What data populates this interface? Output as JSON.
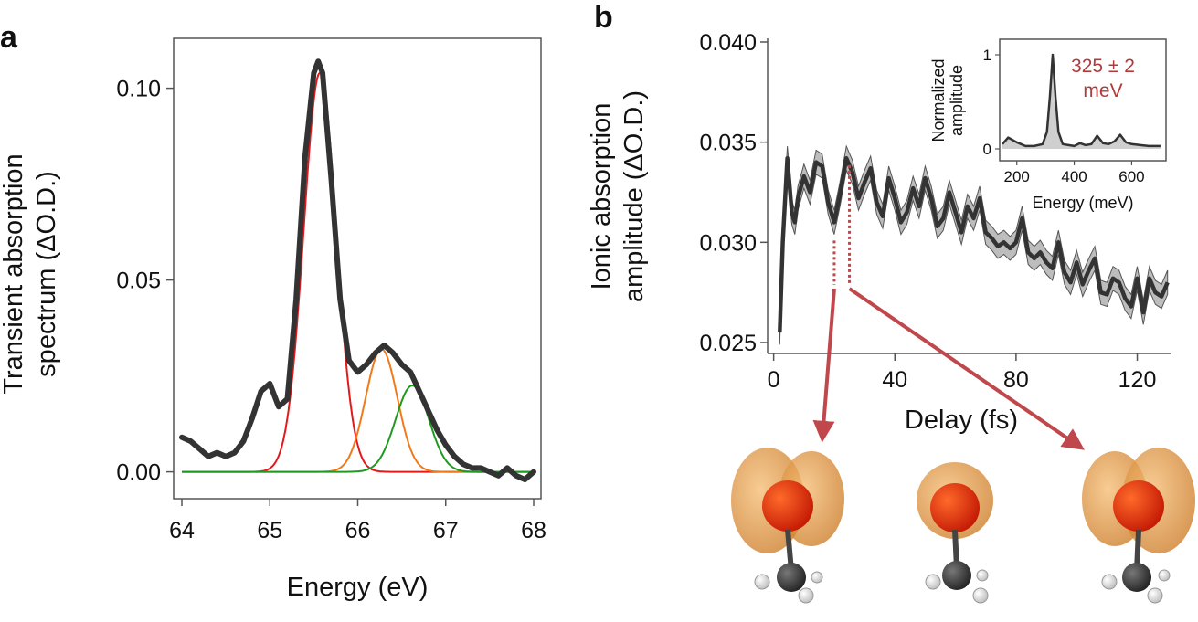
{
  "panels": {
    "a": {
      "label": "a"
    },
    "b": {
      "label": "b"
    }
  },
  "colors": {
    "measured": "#333333",
    "fit_red": "#e3191c",
    "fit_orange": "#f07a1a",
    "fit_green": "#1f9a1f",
    "band": "#bdbdbd",
    "arrow": "#c0474b",
    "annotation": "#b23a3a",
    "orbital": "#e8962e",
    "carbon": "#3a3a3a",
    "hydrogen": "#ffffff"
  },
  "chart_data": [
    {
      "id": "a",
      "type": "line",
      "title": "",
      "xlabel": "Energy (eV)",
      "ylabel_lines": [
        "Transient absorption",
        "spectrum (ΔO.D.)"
      ],
      "xlim": [
        64,
        68
      ],
      "ylim": [
        -0.007,
        0.113
      ],
      "xticks": [
        64,
        65,
        66,
        67,
        68
      ],
      "xtick_labels": [
        "64",
        "65",
        "66",
        "67",
        "68"
      ],
      "yticks": [
        0.0,
        0.05,
        0.1
      ],
      "ytick_labels": [
        "0.00",
        "0.05",
        "0.10"
      ],
      "series": [
        {
          "name": "measured",
          "x": [
            64.0,
            64.1,
            64.2,
            64.3,
            64.4,
            64.5,
            64.6,
            64.7,
            64.8,
            64.9,
            65.0,
            65.1,
            65.2,
            65.3,
            65.4,
            65.5,
            65.55,
            65.6,
            65.7,
            65.8,
            65.9,
            66.0,
            66.1,
            66.2,
            66.3,
            66.4,
            66.5,
            66.6,
            66.7,
            66.8,
            66.9,
            67.0,
            67.1,
            67.2,
            67.3,
            67.4,
            67.5,
            67.6,
            67.7,
            67.8,
            67.9,
            68.0
          ],
          "y": [
            0.009,
            0.008,
            0.006,
            0.004,
            0.005,
            0.004,
            0.005,
            0.008,
            0.014,
            0.021,
            0.023,
            0.017,
            0.019,
            0.045,
            0.082,
            0.104,
            0.107,
            0.104,
            0.076,
            0.045,
            0.029,
            0.026,
            0.028,
            0.031,
            0.033,
            0.031,
            0.028,
            0.026,
            0.021,
            0.016,
            0.011,
            0.007,
            0.004,
            0.002,
            0.001,
            0.001,
            0.0,
            -0.001,
            0.001,
            -0.001,
            -0.002,
            0.0
          ]
        },
        {
          "name": "fit-red",
          "gaussian": {
            "center": 65.57,
            "amplitude": 0.104,
            "sigma": 0.185
          }
        },
        {
          "name": "fit-orange",
          "gaussian": {
            "center": 66.27,
            "amplitude": 0.032,
            "sigma": 0.18
          }
        },
        {
          "name": "fit-green",
          "gaussian": {
            "center": 66.62,
            "amplitude": 0.0225,
            "sigma": 0.19
          }
        }
      ]
    },
    {
      "id": "b",
      "type": "line",
      "title": "",
      "xlabel": "Delay (fs)",
      "ylabel_lines": [
        "Ionic absorption",
        "amplitude (ΔO.D.)"
      ],
      "xlim": [
        -2,
        131
      ],
      "ylim": [
        0.0248,
        0.0405
      ],
      "xticks": [
        0,
        40,
        80,
        120
      ],
      "xtick_labels": [
        "0",
        "40",
        "80",
        "120"
      ],
      "yticks": [
        0.025,
        0.03,
        0.035,
        0.04
      ],
      "ytick_labels": [
        "0.025",
        "0.030",
        "0.035",
        "0.040"
      ],
      "band_halfwidth": 0.0006,
      "series": [
        {
          "name": "ionic-amplitude",
          "x": [
            2,
            3,
            4.5,
            6,
            7,
            8,
            10,
            12,
            14,
            16,
            18,
            20,
            22,
            24,
            26,
            28,
            30,
            32,
            34,
            36,
            38,
            40,
            42,
            44,
            46,
            48,
            50,
            52,
            54,
            56,
            58,
            60,
            62,
            64,
            66,
            68,
            70,
            72,
            74,
            76,
            78,
            80,
            82,
            84,
            86,
            88,
            90,
            92,
            94,
            96,
            98,
            100,
            102,
            104,
            106,
            108,
            110,
            112,
            114,
            116,
            118,
            120,
            122,
            124,
            126,
            128,
            130
          ],
          "y": [
            0.0255,
            0.03,
            0.0342,
            0.0315,
            0.031,
            0.0322,
            0.0333,
            0.0325,
            0.034,
            0.0338,
            0.032,
            0.031,
            0.0325,
            0.0342,
            0.0335,
            0.0322,
            0.033,
            0.0337,
            0.032,
            0.0313,
            0.0332,
            0.0322,
            0.031,
            0.0315,
            0.0327,
            0.0318,
            0.0332,
            0.0322,
            0.0308,
            0.0312,
            0.0325,
            0.0315,
            0.0305,
            0.0318,
            0.0312,
            0.0322,
            0.0305,
            0.0302,
            0.0298,
            0.03,
            0.0297,
            0.03,
            0.0312,
            0.0295,
            0.0292,
            0.0295,
            0.029,
            0.0287,
            0.03,
            0.0285,
            0.028,
            0.029,
            0.0279,
            0.0286,
            0.0292,
            0.0275,
            0.0274,
            0.0282,
            0.028,
            0.0272,
            0.0268,
            0.0282,
            0.0265,
            0.0282,
            0.0275,
            0.0273,
            0.028
          ]
        }
      ],
      "annotation_delays": [
        20,
        25
      ]
    },
    {
      "id": "b-inset",
      "type": "area",
      "title": "",
      "xlabel": "Energy (meV)",
      "ylabel_lines": [
        "Normalized",
        "amplitude"
      ],
      "xlim": [
        150,
        710
      ],
      "ylim": [
        0,
        1.08
      ],
      "xticks": [
        200,
        400,
        600
      ],
      "xtick_labels": [
        "200",
        "400",
        "600"
      ],
      "yticks": [
        0,
        1
      ],
      "ytick_labels": [
        "0",
        "1"
      ],
      "annotation": [
        "325 ± 2",
        "meV"
      ],
      "series": [
        {
          "name": "spectrum",
          "x": [
            150,
            170,
            200,
            230,
            260,
            290,
            305,
            315,
            325,
            335,
            345,
            360,
            380,
            400,
            420,
            440,
            460,
            480,
            500,
            520,
            540,
            560,
            580,
            600,
            630,
            660,
            700
          ],
          "y": [
            0.05,
            0.12,
            0.07,
            0.03,
            0.03,
            0.05,
            0.18,
            0.55,
            1.0,
            0.55,
            0.18,
            0.05,
            0.04,
            0.03,
            0.06,
            0.04,
            0.05,
            0.14,
            0.06,
            0.05,
            0.08,
            0.15,
            0.07,
            0.05,
            0.04,
            0.03,
            0.03
          ]
        }
      ]
    }
  ]
}
